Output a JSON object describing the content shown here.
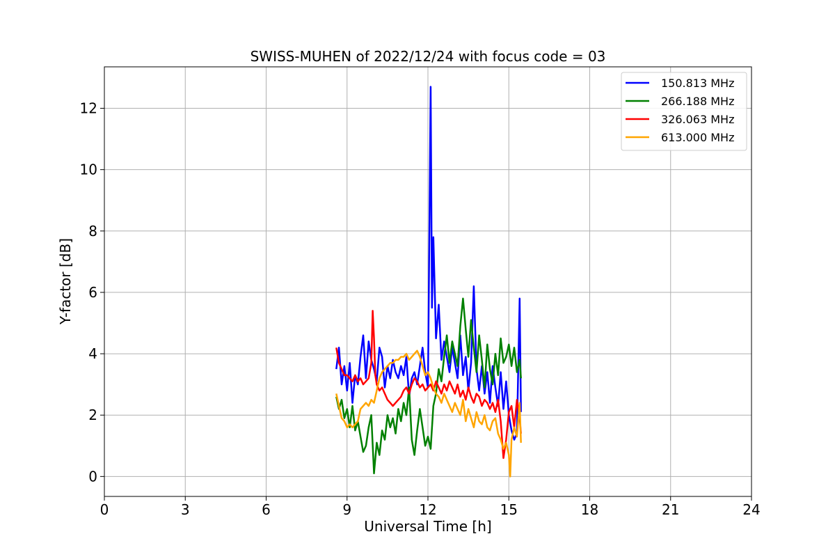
{
  "chart_data": {
    "type": "line",
    "title": "SWISS-MUHEN of 2022/12/24 with focus code = 03",
    "xlabel": "Universal Time [h]",
    "ylabel": "Y-factor [dB]",
    "xlim": [
      0,
      24
    ],
    "ylim": [
      -0.65,
      13.35
    ],
    "xticks": [
      0,
      3,
      6,
      9,
      12,
      15,
      18,
      21,
      24
    ],
    "yticks": [
      0,
      2,
      4,
      6,
      8,
      10,
      12
    ],
    "grid": true,
    "legend_position": "top-right",
    "series": [
      {
        "name": "150.813 MHz",
        "color": "#0000ff",
        "x": [
          8.6,
          8.7,
          8.8,
          8.9,
          9.0,
          9.1,
          9.2,
          9.3,
          9.4,
          9.5,
          9.6,
          9.7,
          9.8,
          9.9,
          10.0,
          10.1,
          10.2,
          10.3,
          10.4,
          10.5,
          10.6,
          10.7,
          10.8,
          10.9,
          11.0,
          11.1,
          11.2,
          11.3,
          11.4,
          11.5,
          11.6,
          11.7,
          11.8,
          11.9,
          12.0,
          12.05,
          12.1,
          12.15,
          12.2,
          12.3,
          12.4,
          12.5,
          12.6,
          12.7,
          12.8,
          12.9,
          13.0,
          13.1,
          13.2,
          13.3,
          13.4,
          13.5,
          13.6,
          13.7,
          13.8,
          13.9,
          14.0,
          14.1,
          14.2,
          14.3,
          14.4,
          14.5,
          14.6,
          14.7,
          14.8,
          14.9,
          15.0,
          15.1,
          15.2,
          15.3,
          15.4,
          15.45
        ],
        "y": [
          3.5,
          4.2,
          3.0,
          3.6,
          2.8,
          3.7,
          2.4,
          3.3,
          3.0,
          3.9,
          4.6,
          3.2,
          4.4,
          3.8,
          3.5,
          3.1,
          4.2,
          3.9,
          2.9,
          3.6,
          3.2,
          3.8,
          3.4,
          3.2,
          3.6,
          3.3,
          3.9,
          2.6,
          3.2,
          3.4,
          3.0,
          3.6,
          4.2,
          3.4,
          2.9,
          7.5,
          12.7,
          5.5,
          7.8,
          4.5,
          5.6,
          3.8,
          4.4,
          3.9,
          3.4,
          4.2,
          3.7,
          3.2,
          4.6,
          3.3,
          3.9,
          2.8,
          3.7,
          6.2,
          3.5,
          2.8,
          3.6,
          2.7,
          3.4,
          2.4,
          3.6,
          2.9,
          2.3,
          3.4,
          2.2,
          3.1,
          2.0,
          1.5,
          1.2,
          1.4,
          5.8,
          2.1
        ]
      },
      {
        "name": "266.188 MHz",
        "color": "#008000",
        "x": [
          8.6,
          8.7,
          8.8,
          8.9,
          9.0,
          9.1,
          9.2,
          9.3,
          9.4,
          9.5,
          9.6,
          9.7,
          9.8,
          9.9,
          10.0,
          10.1,
          10.2,
          10.3,
          10.4,
          10.5,
          10.6,
          10.7,
          10.8,
          10.9,
          11.0,
          11.1,
          11.2,
          11.3,
          11.4,
          11.5,
          11.6,
          11.7,
          11.8,
          11.9,
          12.0,
          12.1,
          12.2,
          12.3,
          12.4,
          12.5,
          12.6,
          12.7,
          12.8,
          12.9,
          13.0,
          13.1,
          13.2,
          13.3,
          13.4,
          13.5,
          13.6,
          13.7,
          13.8,
          13.9,
          14.0,
          14.1,
          14.2,
          14.3,
          14.4,
          14.5,
          14.6,
          14.7,
          14.8,
          14.9,
          15.0,
          15.1,
          15.2,
          15.3,
          15.4,
          15.45
        ],
        "y": [
          2.6,
          2.2,
          2.5,
          1.9,
          2.2,
          1.6,
          2.3,
          1.5,
          1.8,
          1.3,
          0.8,
          1.0,
          1.6,
          2.0,
          0.1,
          1.1,
          0.7,
          1.5,
          1.2,
          2.0,
          1.6,
          1.9,
          1.4,
          2.2,
          1.8,
          2.4,
          2.0,
          2.9,
          1.2,
          0.7,
          1.5,
          2.2,
          1.6,
          1.0,
          1.3,
          0.9,
          2.3,
          2.7,
          3.5,
          3.1,
          3.9,
          4.6,
          3.7,
          4.4,
          4.0,
          3.6,
          4.9,
          5.8,
          4.8,
          3.9,
          5.1,
          4.2,
          3.4,
          4.6,
          3.8,
          2.9,
          4.3,
          3.5,
          3.0,
          4.0,
          3.3,
          4.5,
          3.7,
          3.9,
          4.3,
          3.6,
          4.2,
          3.4,
          3.8,
          3.2
        ]
      },
      {
        "name": "326.063 MHz",
        "color": "#ff0000",
        "x": [
          8.6,
          8.7,
          8.8,
          8.9,
          9.0,
          9.1,
          9.2,
          9.3,
          9.4,
          9.5,
          9.6,
          9.7,
          9.8,
          9.9,
          9.95,
          10.0,
          10.05,
          10.1,
          10.2,
          10.3,
          10.4,
          10.5,
          10.6,
          10.7,
          10.8,
          10.9,
          11.0,
          11.1,
          11.2,
          11.3,
          11.4,
          11.5,
          11.6,
          11.7,
          11.8,
          11.9,
          12.0,
          12.1,
          12.2,
          12.3,
          12.4,
          12.5,
          12.6,
          12.7,
          12.8,
          12.9,
          13.0,
          13.1,
          13.2,
          13.3,
          13.4,
          13.5,
          13.6,
          13.7,
          13.8,
          13.9,
          14.0,
          14.1,
          14.2,
          14.3,
          14.4,
          14.5,
          14.6,
          14.7,
          14.8,
          14.9,
          15.0,
          15.1,
          15.2,
          15.3,
          15.4,
          15.45
        ],
        "y": [
          4.2,
          3.7,
          3.5,
          3.3,
          3.3,
          3.2,
          3.1,
          3.3,
          3.1,
          3.2,
          3.0,
          3.1,
          3.2,
          3.7,
          5.4,
          4.5,
          3.3,
          3.0,
          2.8,
          2.9,
          2.7,
          2.5,
          2.4,
          2.3,
          2.4,
          2.5,
          2.6,
          2.8,
          2.9,
          2.7,
          3.0,
          3.2,
          3.1,
          2.9,
          3.0,
          2.8,
          2.9,
          3.0,
          2.8,
          3.1,
          2.9,
          2.7,
          3.0,
          2.8,
          3.1,
          2.9,
          2.7,
          3.0,
          2.6,
          2.8,
          2.5,
          2.9,
          2.6,
          2.4,
          2.7,
          2.6,
          2.3,
          2.5,
          2.4,
          2.2,
          2.4,
          2.1,
          2.5,
          1.8,
          0.6,
          1.2,
          2.1,
          2.3,
          1.6,
          2.5,
          1.9,
          1.4
        ]
      },
      {
        "name": "613.000 MHz",
        "color": "#ffa500",
        "x": [
          8.6,
          8.7,
          8.8,
          8.9,
          9.0,
          9.1,
          9.2,
          9.3,
          9.4,
          9.5,
          9.6,
          9.7,
          9.8,
          9.9,
          10.0,
          10.1,
          10.2,
          10.3,
          10.4,
          10.5,
          10.6,
          10.7,
          10.8,
          10.9,
          11.0,
          11.1,
          11.2,
          11.3,
          11.4,
          11.5,
          11.6,
          11.7,
          11.8,
          11.9,
          12.0,
          12.1,
          12.2,
          12.3,
          12.4,
          12.5,
          12.6,
          12.7,
          12.8,
          12.9,
          13.0,
          13.1,
          13.2,
          13.3,
          13.4,
          13.5,
          13.6,
          13.7,
          13.8,
          13.9,
          14.0,
          14.1,
          14.2,
          14.3,
          14.4,
          14.5,
          14.6,
          14.7,
          14.8,
          14.9,
          15.0,
          15.05,
          15.1,
          15.2,
          15.3,
          15.4,
          15.45
        ],
        "y": [
          2.7,
          2.3,
          1.9,
          1.8,
          1.6,
          1.7,
          1.6,
          1.7,
          1.8,
          2.2,
          2.3,
          2.4,
          2.3,
          2.5,
          2.4,
          2.8,
          3.2,
          3.4,
          3.5,
          3.6,
          3.7,
          3.7,
          3.8,
          3.8,
          3.9,
          3.9,
          4.0,
          3.8,
          3.9,
          4.0,
          4.1,
          3.9,
          3.6,
          3.3,
          3.4,
          3.2,
          2.9,
          2.7,
          2.6,
          2.4,
          2.7,
          2.5,
          2.3,
          2.1,
          2.4,
          2.2,
          2.0,
          2.5,
          1.8,
          2.2,
          1.9,
          1.6,
          2.1,
          1.8,
          1.7,
          2.0,
          1.6,
          1.5,
          1.8,
          1.9,
          1.4,
          1.2,
          0.9,
          1.1,
          0.7,
          0.0,
          1.2,
          1.6,
          1.3,
          2.4,
          1.1
        ]
      }
    ]
  }
}
